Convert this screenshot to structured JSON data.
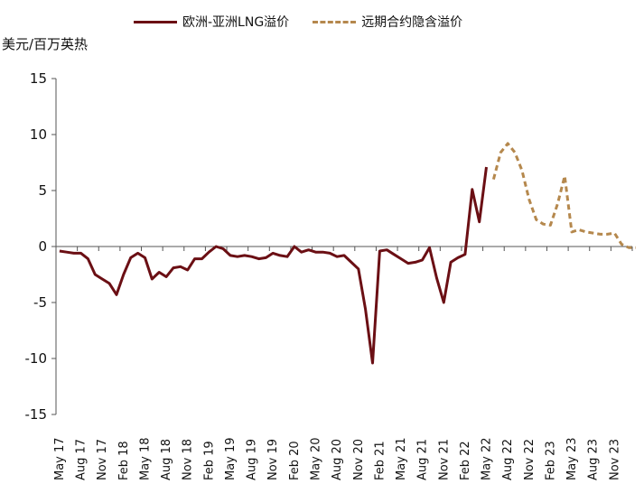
{
  "chart_data": {
    "type": "line",
    "ylabel": "美元/百万英热",
    "ylim": [
      -15,
      15
    ],
    "yticks": [
      15,
      10,
      5,
      0,
      -5,
      -10,
      -15
    ],
    "x_start": "May 17",
    "x_labels": [
      "May 17",
      "Aug 17",
      "Nov 17",
      "Feb 18",
      "May 18",
      "Aug 18",
      "Nov 18",
      "Feb 19",
      "May 19",
      "Aug 19",
      "Nov 19",
      "Feb 20",
      "May 20",
      "Aug 20",
      "Nov 20",
      "Feb 21",
      "May 21",
      "Aug 21",
      "Nov 21",
      "Feb 22",
      "May 22",
      "Aug 22",
      "Nov 22",
      "Feb 23",
      "May 23",
      "Aug 23",
      "Nov 23"
    ],
    "series": [
      {
        "name": "欧洲-亚洲LNG溢价",
        "color": "#6b0f14",
        "style": "solid",
        "values": [
          -0.4,
          -0.5,
          -0.6,
          -0.6,
          -1.1,
          -2.5,
          -2.9,
          -3.3,
          -4.3,
          -2.5,
          -1.0,
          -0.6,
          -1.0,
          -2.9,
          -2.3,
          -2.7,
          -1.9,
          -1.8,
          -2.1,
          -1.1,
          -1.1,
          -0.5,
          0.0,
          -0.2,
          -0.8,
          -0.9,
          -0.8,
          -0.9,
          -1.1,
          -1.0,
          -0.6,
          -0.8,
          -0.9,
          0.0,
          -0.5,
          -0.3,
          -0.5,
          -0.5,
          -0.6,
          -0.9,
          -0.8,
          -1.4,
          -2.0,
          -5.6,
          -10.4,
          -0.4,
          -0.3,
          -0.7,
          -1.1,
          -1.5,
          -1.4,
          -1.2,
          -0.1,
          -2.8,
          -5.0,
          -1.4,
          -1.0,
          -0.7,
          5.1,
          2.2,
          7.1
        ]
      },
      {
        "name": "远期合约隐含溢价",
        "color": "#b5884d",
        "style": "dashed",
        "start_index": 61,
        "values": [
          6.0,
          8.4,
          9.2,
          8.4,
          6.8,
          4.2,
          2.4,
          2.0,
          1.9,
          3.8,
          6.3,
          1.3,
          1.5,
          1.3,
          1.2,
          1.1,
          1.1,
          1.2,
          0.2,
          -0.1,
          -0.1
        ]
      }
    ]
  }
}
